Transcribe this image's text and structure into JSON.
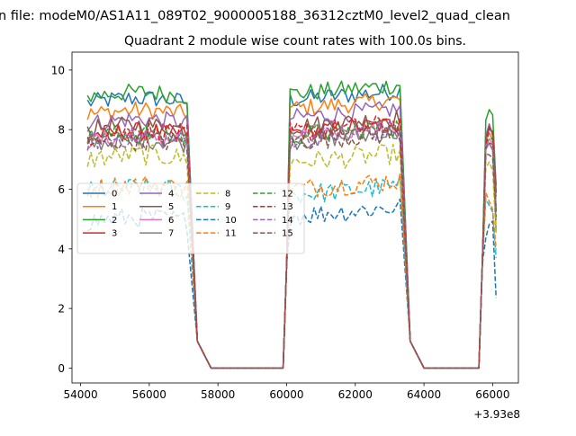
{
  "figure": {
    "suptitle": "n file: modeM0/AS1A11_089T02_9000005188_36312cztM0_level2_quad_clean",
    "title": "Quadrant 2 module wise count rates with 100.0s bins."
  },
  "chart_data": {
    "type": "line",
    "title": "Quadrant 2 module wise count rates with 100.0s bins.",
    "xlabel": "",
    "ylabel": "",
    "x_offset": 393000000,
    "x_offset_label": "+3.93e8",
    "xlim": [
      53750,
      66750
    ],
    "ylim": [
      -0.5,
      10.6
    ],
    "x_ticks": [
      54000,
      56000,
      58000,
      60000,
      62000,
      64000,
      66000
    ],
    "x_tick_labels": [
      "54000",
      "56000",
      "58000",
      "60000",
      "62000",
      "64000",
      "66000"
    ],
    "y_ticks": [
      0,
      2,
      4,
      6,
      8,
      10
    ],
    "y_tick_labels": [
      "0",
      "2",
      "4",
      "6",
      "8",
      "10"
    ],
    "grid": false,
    "legend": {
      "placement": "center-left",
      "columns": 4
    },
    "segments": [
      [
        54200,
        57100
      ],
      [
        60100,
        63300
      ],
      [
        65800,
        66000
      ]
    ],
    "gaps": [
      [
        57800,
        59900
      ],
      [
        63600,
        65600
      ]
    ],
    "series": [
      {
        "name": "0",
        "style": "solid",
        "color": "#1f77b4",
        "levels": [
          8.9,
          9.0,
          8.0
        ]
      },
      {
        "name": "1",
        "style": "solid",
        "color": "#ff7f0e",
        "levels": [
          8.5,
          8.7,
          7.5
        ]
      },
      {
        "name": "2",
        "style": "solid",
        "color": "#2ca02c",
        "levels": [
          9.1,
          9.2,
          8.4
        ]
      },
      {
        "name": "3",
        "style": "solid",
        "color": "#d62728",
        "levels": [
          7.8,
          7.9,
          7.5
        ]
      },
      {
        "name": "4",
        "style": "solid",
        "color": "#9467bd",
        "levels": [
          8.2,
          8.4,
          7.8
        ]
      },
      {
        "name": "5",
        "style": "solid",
        "color": "#8c564b",
        "levels": [
          8.0,
          8.1,
          7.7
        ]
      },
      {
        "name": "6",
        "style": "solid",
        "color": "#e377c2",
        "levels": [
          7.6,
          7.8,
          7.4
        ]
      },
      {
        "name": "7",
        "style": "solid",
        "color": "#7f7f7f",
        "levels": [
          7.5,
          7.6,
          7.2
        ]
      },
      {
        "name": "8",
        "style": "dashed",
        "color": "#bcbd22",
        "levels": [
          7.0,
          6.9,
          6.5
        ]
      },
      {
        "name": "9",
        "style": "dashed",
        "color": "#17becf",
        "levels": [
          5.9,
          5.8,
          5.4
        ]
      },
      {
        "name": "10",
        "style": "dashed",
        "color": "#1f77b4",
        "levels": [
          4.9,
          5.1,
          4.6
        ]
      },
      {
        "name": "11",
        "style": "dashed",
        "color": "#ff7f0e",
        "levels": [
          6.0,
          6.0,
          5.6
        ]
      },
      {
        "name": "12",
        "style": "dashed",
        "color": "#2ca02c",
        "levels": [
          7.7,
          7.8,
          7.4
        ]
      },
      {
        "name": "13",
        "style": "dashed",
        "color": "#d62728",
        "levels": [
          7.8,
          7.9,
          7.6
        ]
      },
      {
        "name": "14",
        "style": "dashed",
        "color": "#9467bd",
        "levels": [
          7.6,
          7.7,
          7.3
        ]
      },
      {
        "name": "15",
        "style": "dashed",
        "color": "#8c564b",
        "levels": [
          7.5,
          7.6,
          7.2
        ]
      }
    ]
  }
}
